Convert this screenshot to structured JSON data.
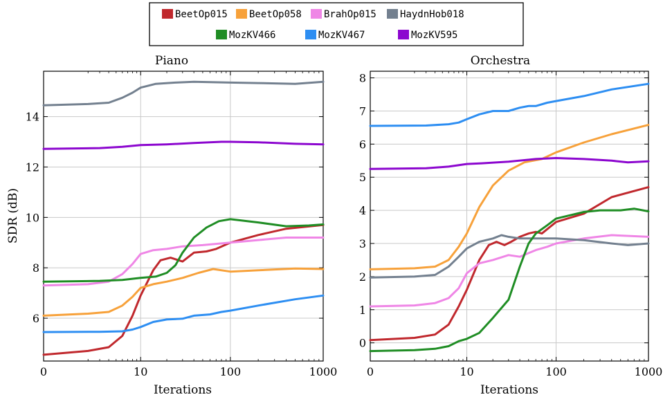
{
  "legend": [
    {
      "name": "BeetOp015",
      "color": "#c0282d"
    },
    {
      "name": "BeetOp058",
      "color": "#f7a13a"
    },
    {
      "name": "BrahOp015",
      "color": "#ef86e6"
    },
    {
      "name": "HaydnHob018",
      "color": "#73808f"
    },
    {
      "name": "MozKV466",
      "color": "#1f8d24"
    },
    {
      "name": "MozKV467",
      "color": "#2d8ef2"
    },
    {
      "name": "MozKV595",
      "color": "#8c07cf"
    }
  ],
  "chart_data": [
    {
      "type": "line",
      "title": "Piano",
      "xlabel": "Iterations",
      "ylabel": "SDR (dB)",
      "xscale": "log (symlog, 0 at left)",
      "xlim": [
        0,
        1000
      ],
      "ylim": [
        4.3,
        15.8
      ],
      "xticks": [
        0,
        10,
        100,
        1000
      ],
      "xtick_labels": [
        "0",
        "10",
        "100",
        "1000"
      ],
      "yticks": [
        6,
        8,
        10,
        12,
        14
      ],
      "ytick_labels": [
        "6",
        "8",
        "10",
        "12",
        "14"
      ],
      "grid": true,
      "series": [
        {
          "name": "BeetOp015",
          "points": [
            [
              0,
              4.55
            ],
            [
              2,
              4.7
            ],
            [
              4,
              4.85
            ],
            [
              6,
              5.3
            ],
            [
              8,
              6.1
            ],
            [
              10,
              6.9
            ],
            [
              14,
              7.9
            ],
            [
              17,
              8.3
            ],
            [
              22,
              8.4
            ],
            [
              30,
              8.25
            ],
            [
              40,
              8.6
            ],
            [
              55,
              8.65
            ],
            [
              70,
              8.75
            ],
            [
              100,
              9.0
            ],
            [
              200,
              9.3
            ],
            [
              400,
              9.55
            ],
            [
              1000,
              9.7
            ]
          ]
        },
        {
          "name": "BeetOp058",
          "points": [
            [
              0,
              6.1
            ],
            [
              2,
              6.18
            ],
            [
              4,
              6.25
            ],
            [
              6,
              6.5
            ],
            [
              8,
              6.85
            ],
            [
              10,
              7.2
            ],
            [
              14,
              7.35
            ],
            [
              20,
              7.45
            ],
            [
              30,
              7.6
            ],
            [
              45,
              7.8
            ],
            [
              65,
              7.95
            ],
            [
              100,
              7.85
            ],
            [
              200,
              7.9
            ],
            [
              500,
              7.97
            ],
            [
              1000,
              7.95
            ]
          ]
        },
        {
          "name": "BrahOp015",
          "points": [
            [
              0,
              7.3
            ],
            [
              2,
              7.35
            ],
            [
              4,
              7.45
            ],
            [
              6,
              7.75
            ],
            [
              8,
              8.15
            ],
            [
              10,
              8.55
            ],
            [
              14,
              8.7
            ],
            [
              20,
              8.75
            ],
            [
              30,
              8.85
            ],
            [
              50,
              8.9
            ],
            [
              100,
              9.0
            ],
            [
              200,
              9.1
            ],
            [
              400,
              9.2
            ],
            [
              1000,
              9.2
            ]
          ]
        },
        {
          "name": "HaydnHob018",
          "points": [
            [
              0,
              14.45
            ],
            [
              2,
              14.5
            ],
            [
              4,
              14.55
            ],
            [
              6,
              14.75
            ],
            [
              8,
              14.95
            ],
            [
              10,
              15.15
            ],
            [
              15,
              15.3
            ],
            [
              25,
              15.35
            ],
            [
              40,
              15.38
            ],
            [
              100,
              15.35
            ],
            [
              200,
              15.33
            ],
            [
              500,
              15.3
            ],
            [
              1000,
              15.38
            ]
          ]
        },
        {
          "name": "MozKV466",
          "points": [
            [
              0,
              7.45
            ],
            [
              3,
              7.48
            ],
            [
              6,
              7.52
            ],
            [
              10,
              7.6
            ],
            [
              15,
              7.65
            ],
            [
              20,
              7.8
            ],
            [
              25,
              8.1
            ],
            [
              30,
              8.6
            ],
            [
              40,
              9.2
            ],
            [
              55,
              9.6
            ],
            [
              75,
              9.85
            ],
            [
              100,
              9.93
            ],
            [
              200,
              9.8
            ],
            [
              400,
              9.65
            ],
            [
              700,
              9.68
            ],
            [
              1000,
              9.72
            ]
          ]
        },
        {
          "name": "MozKV467",
          "points": [
            [
              0,
              5.45
            ],
            [
              3,
              5.46
            ],
            [
              6,
              5.48
            ],
            [
              8,
              5.55
            ],
            [
              10,
              5.65
            ],
            [
              14,
              5.85
            ],
            [
              20,
              5.95
            ],
            [
              30,
              5.98
            ],
            [
              40,
              6.1
            ],
            [
              60,
              6.15
            ],
            [
              80,
              6.25
            ],
            [
              100,
              6.3
            ],
            [
              200,
              6.5
            ],
            [
              500,
              6.75
            ],
            [
              1000,
              6.9
            ]
          ]
        },
        {
          "name": "MozKV595",
          "points": [
            [
              0,
              12.72
            ],
            [
              3,
              12.75
            ],
            [
              6,
              12.8
            ],
            [
              10,
              12.87
            ],
            [
              20,
              12.9
            ],
            [
              40,
              12.95
            ],
            [
              80,
              13.0
            ],
            [
              100,
              13.0
            ],
            [
              200,
              12.98
            ],
            [
              500,
              12.92
            ],
            [
              1000,
              12.9
            ]
          ]
        }
      ]
    },
    {
      "type": "line",
      "title": "Orchestra",
      "xlabel": "Iterations",
      "ylabel": "",
      "xscale": "log (symlog, 0 at left)",
      "xlim": [
        0,
        1000
      ],
      "ylim": [
        -0.55,
        8.2
      ],
      "xticks": [
        0,
        10,
        100,
        1000
      ],
      "xtick_labels": [
        "0",
        "10",
        "100",
        "1000"
      ],
      "yticks": [
        0,
        1,
        2,
        3,
        4,
        5,
        6,
        7,
        8
      ],
      "ytick_labels": [
        "0",
        "1",
        "2",
        "3",
        "4",
        "5",
        "6",
        "7",
        "8"
      ],
      "grid": true,
      "series": [
        {
          "name": "BeetOp015",
          "points": [
            [
              0,
              0.08
            ],
            [
              2,
              0.15
            ],
            [
              4,
              0.25
            ],
            [
              6,
              0.55
            ],
            [
              8,
              1.1
            ],
            [
              10,
              1.6
            ],
            [
              14,
              2.5
            ],
            [
              18,
              2.95
            ],
            [
              22,
              3.05
            ],
            [
              27,
              2.95
            ],
            [
              32,
              3.05
            ],
            [
              40,
              3.2
            ],
            [
              50,
              3.3
            ],
            [
              60,
              3.35
            ],
            [
              70,
              3.3
            ],
            [
              100,
              3.65
            ],
            [
              200,
              3.9
            ],
            [
              400,
              4.4
            ],
            [
              1000,
              4.7
            ]
          ]
        },
        {
          "name": "BeetOp058",
          "points": [
            [
              0,
              2.22
            ],
            [
              2,
              2.25
            ],
            [
              4,
              2.3
            ],
            [
              6,
              2.5
            ],
            [
              8,
              2.9
            ],
            [
              10,
              3.3
            ],
            [
              14,
              4.1
            ],
            [
              20,
              4.75
            ],
            [
              30,
              5.2
            ],
            [
              45,
              5.45
            ],
            [
              70,
              5.55
            ],
            [
              100,
              5.75
            ],
            [
              200,
              6.05
            ],
            [
              400,
              6.3
            ],
            [
              1000,
              6.58
            ]
          ]
        },
        {
          "name": "BrahOp015",
          "points": [
            [
              0,
              1.1
            ],
            [
              2,
              1.13
            ],
            [
              4,
              1.2
            ],
            [
              6,
              1.35
            ],
            [
              8,
              1.65
            ],
            [
              10,
              2.1
            ],
            [
              14,
              2.4
            ],
            [
              20,
              2.5
            ],
            [
              30,
              2.65
            ],
            [
              40,
              2.6
            ],
            [
              60,
              2.8
            ],
            [
              80,
              2.9
            ],
            [
              100,
              3.0
            ],
            [
              200,
              3.15
            ],
            [
              400,
              3.25
            ],
            [
              1000,
              3.2
            ]
          ]
        },
        {
          "name": "HaydnHob018",
          "points": [
            [
              0,
              1.97
            ],
            [
              2,
              2.0
            ],
            [
              4,
              2.05
            ],
            [
              6,
              2.3
            ],
            [
              8,
              2.6
            ],
            [
              10,
              2.85
            ],
            [
              14,
              3.05
            ],
            [
              20,
              3.15
            ],
            [
              25,
              3.25
            ],
            [
              30,
              3.2
            ],
            [
              40,
              3.15
            ],
            [
              60,
              3.15
            ],
            [
              100,
              3.15
            ],
            [
              200,
              3.1
            ],
            [
              400,
              3.0
            ],
            [
              600,
              2.95
            ],
            [
              1000,
              3.0
            ]
          ]
        },
        {
          "name": "MozKV466",
          "points": [
            [
              0,
              -0.25
            ],
            [
              2,
              -0.22
            ],
            [
              4,
              -0.18
            ],
            [
              6,
              -0.1
            ],
            [
              8,
              0.05
            ],
            [
              10,
              0.12
            ],
            [
              14,
              0.3
            ],
            [
              20,
              0.75
            ],
            [
              30,
              1.3
            ],
            [
              40,
              2.3
            ],
            [
              50,
              3.0
            ],
            [
              60,
              3.3
            ],
            [
              80,
              3.55
            ],
            [
              100,
              3.75
            ],
            [
              200,
              3.95
            ],
            [
              300,
              4.0
            ],
            [
              500,
              4.0
            ],
            [
              700,
              4.05
            ],
            [
              1000,
              3.97
            ]
          ]
        },
        {
          "name": "MozKV467",
          "points": [
            [
              0,
              6.55
            ],
            [
              3,
              6.56
            ],
            [
              6,
              6.6
            ],
            [
              8,
              6.65
            ],
            [
              10,
              6.75
            ],
            [
              14,
              6.9
            ],
            [
              20,
              7.0
            ],
            [
              30,
              7.0
            ],
            [
              40,
              7.1
            ],
            [
              50,
              7.15
            ],
            [
              60,
              7.15
            ],
            [
              80,
              7.25
            ],
            [
              100,
              7.3
            ],
            [
              200,
              7.45
            ],
            [
              400,
              7.65
            ],
            [
              1000,
              7.82
            ]
          ]
        },
        {
          "name": "MozKV595",
          "points": [
            [
              0,
              5.25
            ],
            [
              3,
              5.27
            ],
            [
              6,
              5.32
            ],
            [
              10,
              5.4
            ],
            [
              15,
              5.42
            ],
            [
              30,
              5.47
            ],
            [
              60,
              5.55
            ],
            [
              100,
              5.58
            ],
            [
              200,
              5.55
            ],
            [
              400,
              5.5
            ],
            [
              600,
              5.45
            ],
            [
              1000,
              5.48
            ]
          ]
        }
      ]
    }
  ]
}
